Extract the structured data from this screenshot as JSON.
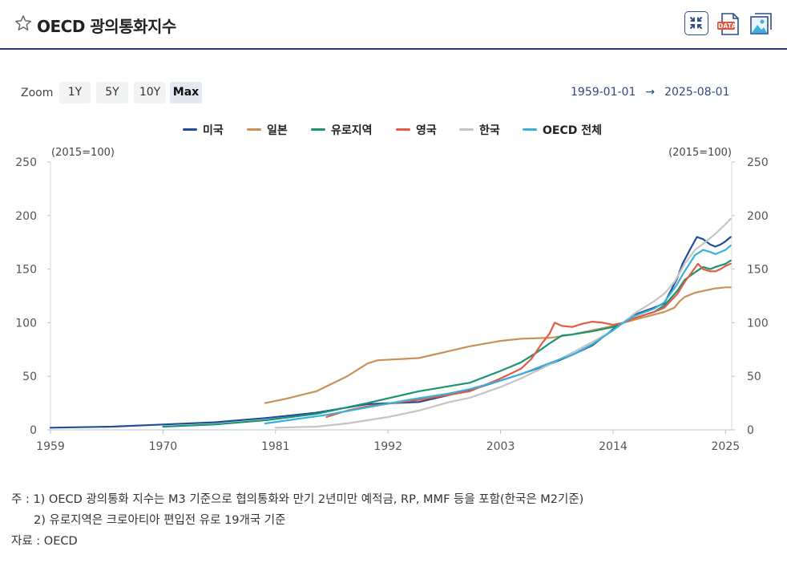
{
  "header": {
    "title": "OECD 광의통화지수",
    "data_badge": "DATA"
  },
  "zoom": {
    "label": "Zoom",
    "buttons": [
      "1Y",
      "5Y",
      "10Y",
      "Max"
    ],
    "active": "Max"
  },
  "date_range": {
    "from": "1959-01-01",
    "arrow": "→",
    "to": "2025-08-01"
  },
  "legend": [
    {
      "name": "미국",
      "color": "#1f4e96"
    },
    {
      "name": "일본",
      "color": "#c8915a"
    },
    {
      "name": "유로지역",
      "color": "#1a9471"
    },
    {
      "name": "영국",
      "color": "#e55a43"
    },
    {
      "name": "한국",
      "color": "#c4c4c4"
    },
    {
      "name": "OECD 전체",
      "color": "#3ab0dc"
    }
  ],
  "chart_data": {
    "type": "line",
    "title": "OECD 광의통화지수",
    "ylabel_left": "(2015=100)",
    "ylabel_right": "(2015=100)",
    "ylim": [
      0,
      250
    ],
    "yticks": [
      "0",
      "50",
      "100",
      "150",
      "200",
      "250"
    ],
    "xlim": [
      1959,
      2025.6
    ],
    "xticks": [
      "1959",
      "1970",
      "1981",
      "1992",
      "2003",
      "2014",
      "2025"
    ],
    "series": [
      {
        "name": "미국",
        "color": "#1f4e96",
        "x": [
          1959,
          1965,
          1970,
          1975,
          1980,
          1985,
          1990,
          1995,
          2000,
          2003,
          2005,
          2008,
          2010,
          2012,
          2014,
          2015,
          2016,
          2018,
          2019,
          2020.2,
          2020.8,
          2021.5,
          2022.2,
          2022.8,
          2023.5,
          2024,
          2024.5,
          2025,
          2025.5
        ],
        "y": [
          2,
          3,
          5,
          7,
          11,
          16,
          24,
          26,
          37,
          46,
          52,
          62,
          70,
          79,
          94,
          100,
          107,
          114,
          118,
          140,
          155,
          168,
          180,
          178,
          173,
          171,
          173,
          176,
          180
        ]
      },
      {
        "name": "일본",
        "color": "#c8915a",
        "x": [
          1980,
          1982,
          1985,
          1988,
          1990,
          1991,
          1995,
          2000,
          2003,
          2005,
          2008,
          2010,
          2012,
          2014,
          2015,
          2017,
          2019,
          2020,
          2020.5,
          2021,
          2022,
          2023,
          2024,
          2025,
          2025.5
        ],
        "y": [
          25,
          29,
          36,
          50,
          62,
          65,
          67,
          78,
          83,
          85,
          86,
          89,
          93,
          97,
          100,
          105,
          110,
          114,
          120,
          124,
          128,
          130,
          132,
          133,
          133
        ]
      },
      {
        "name": "유로지역",
        "color": "#1a9471",
        "x": [
          1970,
          1975,
          1980,
          1985,
          1990,
          1995,
          2000,
          2003,
          2005,
          2006.5,
          2008,
          2009,
          2010,
          2012,
          2014,
          2015,
          2016,
          2018,
          2019,
          2020.3,
          2021,
          2022,
          2022.8,
          2023.5,
          2024,
          2025,
          2025.5
        ],
        "y": [
          3,
          5,
          9,
          15,
          25,
          36,
          44,
          55,
          63,
          72,
          82,
          88,
          89,
          92,
          96,
          100,
          104,
          110,
          116,
          130,
          140,
          147,
          152,
          150,
          152,
          155,
          158
        ]
      },
      {
        "name": "영국",
        "color": "#e55a43",
        "x": [
          1986,
          1988,
          1990,
          1995,
          2000,
          2003,
          2005,
          2006,
          2007,
          2007.8,
          2008.3,
          2009,
          2010,
          2011,
          2012,
          2013,
          2014,
          2015,
          2016,
          2018,
          2019,
          2020.3,
          2021,
          2022.3,
          2022.8,
          2023.5,
          2024,
          2024.5,
          2025,
          2025.5
        ],
        "y": [
          12,
          18,
          22,
          28,
          36,
          48,
          57,
          66,
          80,
          90,
          100,
          97,
          96,
          99,
          101,
          100,
          98,
          100,
          104,
          110,
          114,
          127,
          138,
          155,
          150,
          148,
          148,
          150,
          153,
          155
        ]
      },
      {
        "name": "한국",
        "color": "#c4c4c4",
        "x": [
          1981,
          1985,
          1988,
          1990,
          1992,
          1995,
          1998,
          2000,
          2003,
          2005,
          2008,
          2010,
          2012,
          2014,
          2015,
          2016,
          2017,
          2018,
          2019,
          2020,
          2021,
          2022,
          2023,
          2024,
          2025,
          2025.5
        ],
        "y": [
          2,
          3,
          6,
          9,
          12,
          18,
          26,
          30,
          40,
          48,
          62,
          72,
          82,
          93,
          100,
          108,
          114,
          120,
          127,
          138,
          155,
          168,
          175,
          183,
          192,
          197
        ]
      },
      {
        "name": "OECD 전체",
        "color": "#3ab0dc",
        "x": [
          1980,
          1983,
          1986,
          1990,
          1994,
          1998,
          2000,
          2003,
          2005,
          2008,
          2010,
          2012,
          2014,
          2015,
          2016,
          2018,
          2019,
          2020.2,
          2021,
          2022,
          2022.8,
          2023.5,
          2024,
          2025,
          2025.5
        ],
        "y": [
          6,
          10,
          14,
          21,
          28,
          34,
          38,
          46,
          52,
          63,
          70,
          80,
          93,
          100,
          106,
          113,
          119,
          135,
          148,
          163,
          168,
          166,
          164,
          168,
          172
        ]
      }
    ]
  },
  "notes": {
    "line1": "주 : 1) OECD 광의통화 지수는 M3 기준으로 협의통화와 만기 2년미만 예적금, RP, MMF 등을 포함(한국은 M2기준)",
    "line2": "2) 유로지역은 크로아티아 편입전 유로 19개국 기준",
    "source": "자료 : OECD"
  }
}
